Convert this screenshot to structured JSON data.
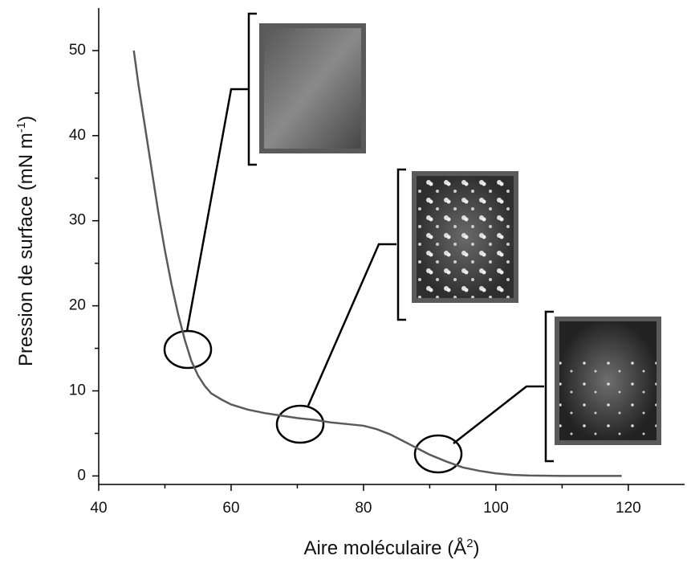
{
  "chart_data": {
    "type": "line",
    "x_label": {
      "text": "Aire moléculaire (Å",
      "sup": "2",
      "end": ")"
    },
    "y_label": {
      "text": "Pression de surface (mN m",
      "sup": "-1",
      "end": ")"
    },
    "xlim": [
      40,
      128.5
    ],
    "ylim": [
      -1,
      55
    ],
    "xticks": [
      40,
      60,
      80,
      100,
      120
    ],
    "yticks": [
      0,
      10,
      20,
      30,
      40,
      50
    ],
    "x_minor_ticks": [
      50,
      70,
      90,
      110
    ],
    "y_minor_ticks": [
      5,
      15,
      25,
      35,
      45
    ],
    "grid": false,
    "series": [
      {
        "color": "#5a5a5a",
        "x": [
          45.3,
          46,
          47,
          48,
          49,
          50,
          51,
          52,
          53,
          54,
          55,
          56,
          57,
          58.5,
          60,
          62.5,
          65,
          67.5,
          70,
          72.5,
          75,
          77.5,
          80,
          82,
          84,
          86,
          88,
          90,
          92.5,
          95,
          97.5,
          100,
          102.5,
          105,
          110,
          115,
          119
        ],
        "values": [
          50,
          46,
          41,
          36,
          31,
          26.5,
          22.5,
          19,
          16,
          13.5,
          11.8,
          10.6,
          9.7,
          9,
          8.4,
          7.8,
          7.4,
          7.1,
          6.8,
          6.6,
          6.3,
          6.1,
          5.9,
          5.5,
          4.9,
          4.1,
          3.3,
          2.5,
          1.7,
          1,
          0.6,
          0.3,
          0.12,
          0.05,
          0,
          0,
          0
        ]
      }
    ]
  }
}
